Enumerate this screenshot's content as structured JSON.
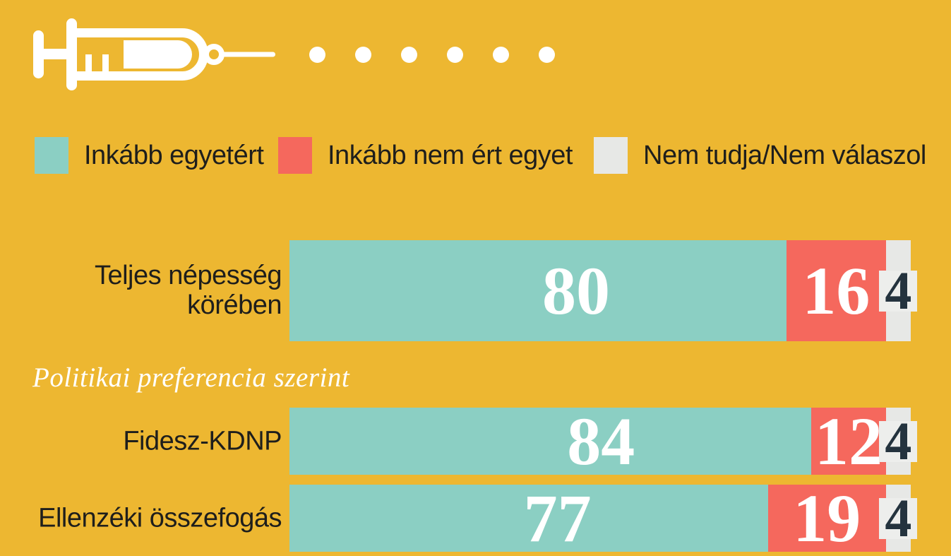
{
  "colors": {
    "background": "#edb731",
    "agree": "#8bcfc3",
    "disagree": "#f5685d",
    "unknown": "#e7e8e6",
    "unknown_badge": "#edeeec",
    "unknown_value_text": "#24333e",
    "value_text": "#ffffff",
    "label_text": "#1e1e1c",
    "icon_white": "#ffffff"
  },
  "header": {
    "icon": "syringe-icon",
    "decor_dots": 6
  },
  "legend": {
    "items": [
      {
        "id": "agree",
        "label": "Inkább egyetért",
        "color": "#8bcfc3"
      },
      {
        "id": "disagree",
        "label": "Inkább nem ért egyet",
        "color": "#f5685d"
      },
      {
        "id": "unknown",
        "label": "Nem tudja/Nem válaszol",
        "color": "#e7e8e6"
      }
    ]
  },
  "chart_data": {
    "type": "bar",
    "variant": "horizontal-stacked",
    "unit": "percent",
    "xlim": [
      0,
      100
    ],
    "grid": false,
    "legend_position": "top",
    "series_names": [
      "Inkább egyetért",
      "Inkább nem ért egyet",
      "Nem tudja/Nem válaszol"
    ],
    "section_label": "Politikai preferencia szerint",
    "section_before_row_index": 1,
    "rows": [
      {
        "label": "Teljes népesség körében",
        "label_lines": [
          "Teljes népesség",
          "körében"
        ],
        "values": [
          80,
          16,
          4
        ]
      },
      {
        "label": "Fidesz-KDNP",
        "label_lines": [
          "Fidesz-KDNP"
        ],
        "values": [
          84,
          12,
          4
        ]
      },
      {
        "label": "Ellenzéki összefogás",
        "label_lines": [
          "Ellenzéki összefogás"
        ],
        "values": [
          77,
          19,
          4
        ]
      }
    ]
  }
}
